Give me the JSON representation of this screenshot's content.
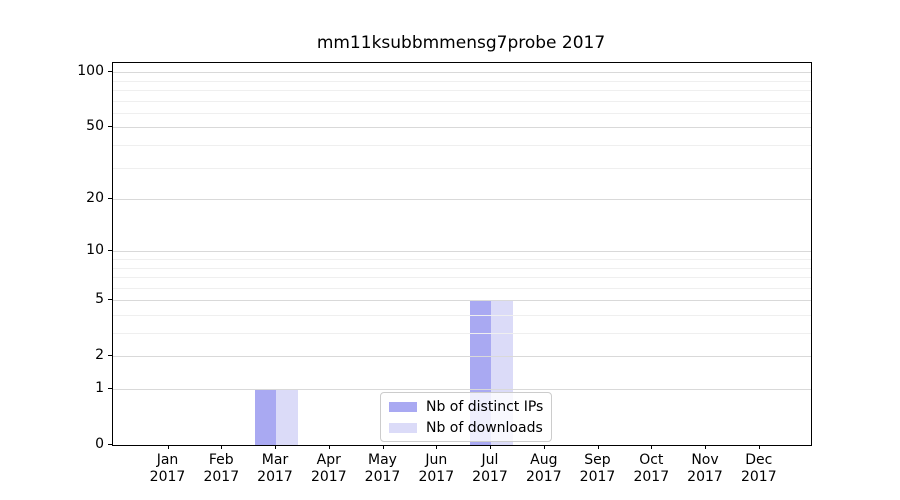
{
  "chart_data": {
    "type": "bar",
    "title": "mm11ksubbmmensg7probe 2017",
    "categories": [
      "Jan",
      "Feb",
      "Mar",
      "Apr",
      "May",
      "Jun",
      "Jul",
      "Aug",
      "Sep",
      "Oct",
      "Nov",
      "Dec"
    ],
    "category_year": "2017",
    "series": [
      {
        "name": "Nb of distinct IPs",
        "color": "#a9a9f2",
        "values": [
          0,
          0,
          1,
          0,
          0,
          0,
          5,
          0,
          0,
          0,
          0,
          0
        ]
      },
      {
        "name": "Nb of downloads",
        "color": "#dbdbf8",
        "values": [
          0,
          0,
          1,
          0,
          0,
          0,
          5,
          0,
          0,
          0,
          0,
          0
        ]
      }
    ],
    "y_axis": {
      "scale": "log10(1+v)",
      "ticks": [
        0,
        1,
        2,
        5,
        10,
        20,
        50,
        100
      ],
      "minor_ticks": [
        3,
        4,
        6,
        7,
        8,
        9,
        30,
        40,
        60,
        70,
        80,
        90
      ],
      "range": [
        0,
        111
      ]
    },
    "x_axis": {
      "label_format": "month over year"
    },
    "legend": {
      "position": "lower center"
    },
    "grid": "major and minor horizontal gridlines",
    "colors": {
      "major_grid": "#d9d9d9",
      "minor_grid": "#efefef",
      "spine": "#000000",
      "legend_border": "#cccccc"
    }
  }
}
